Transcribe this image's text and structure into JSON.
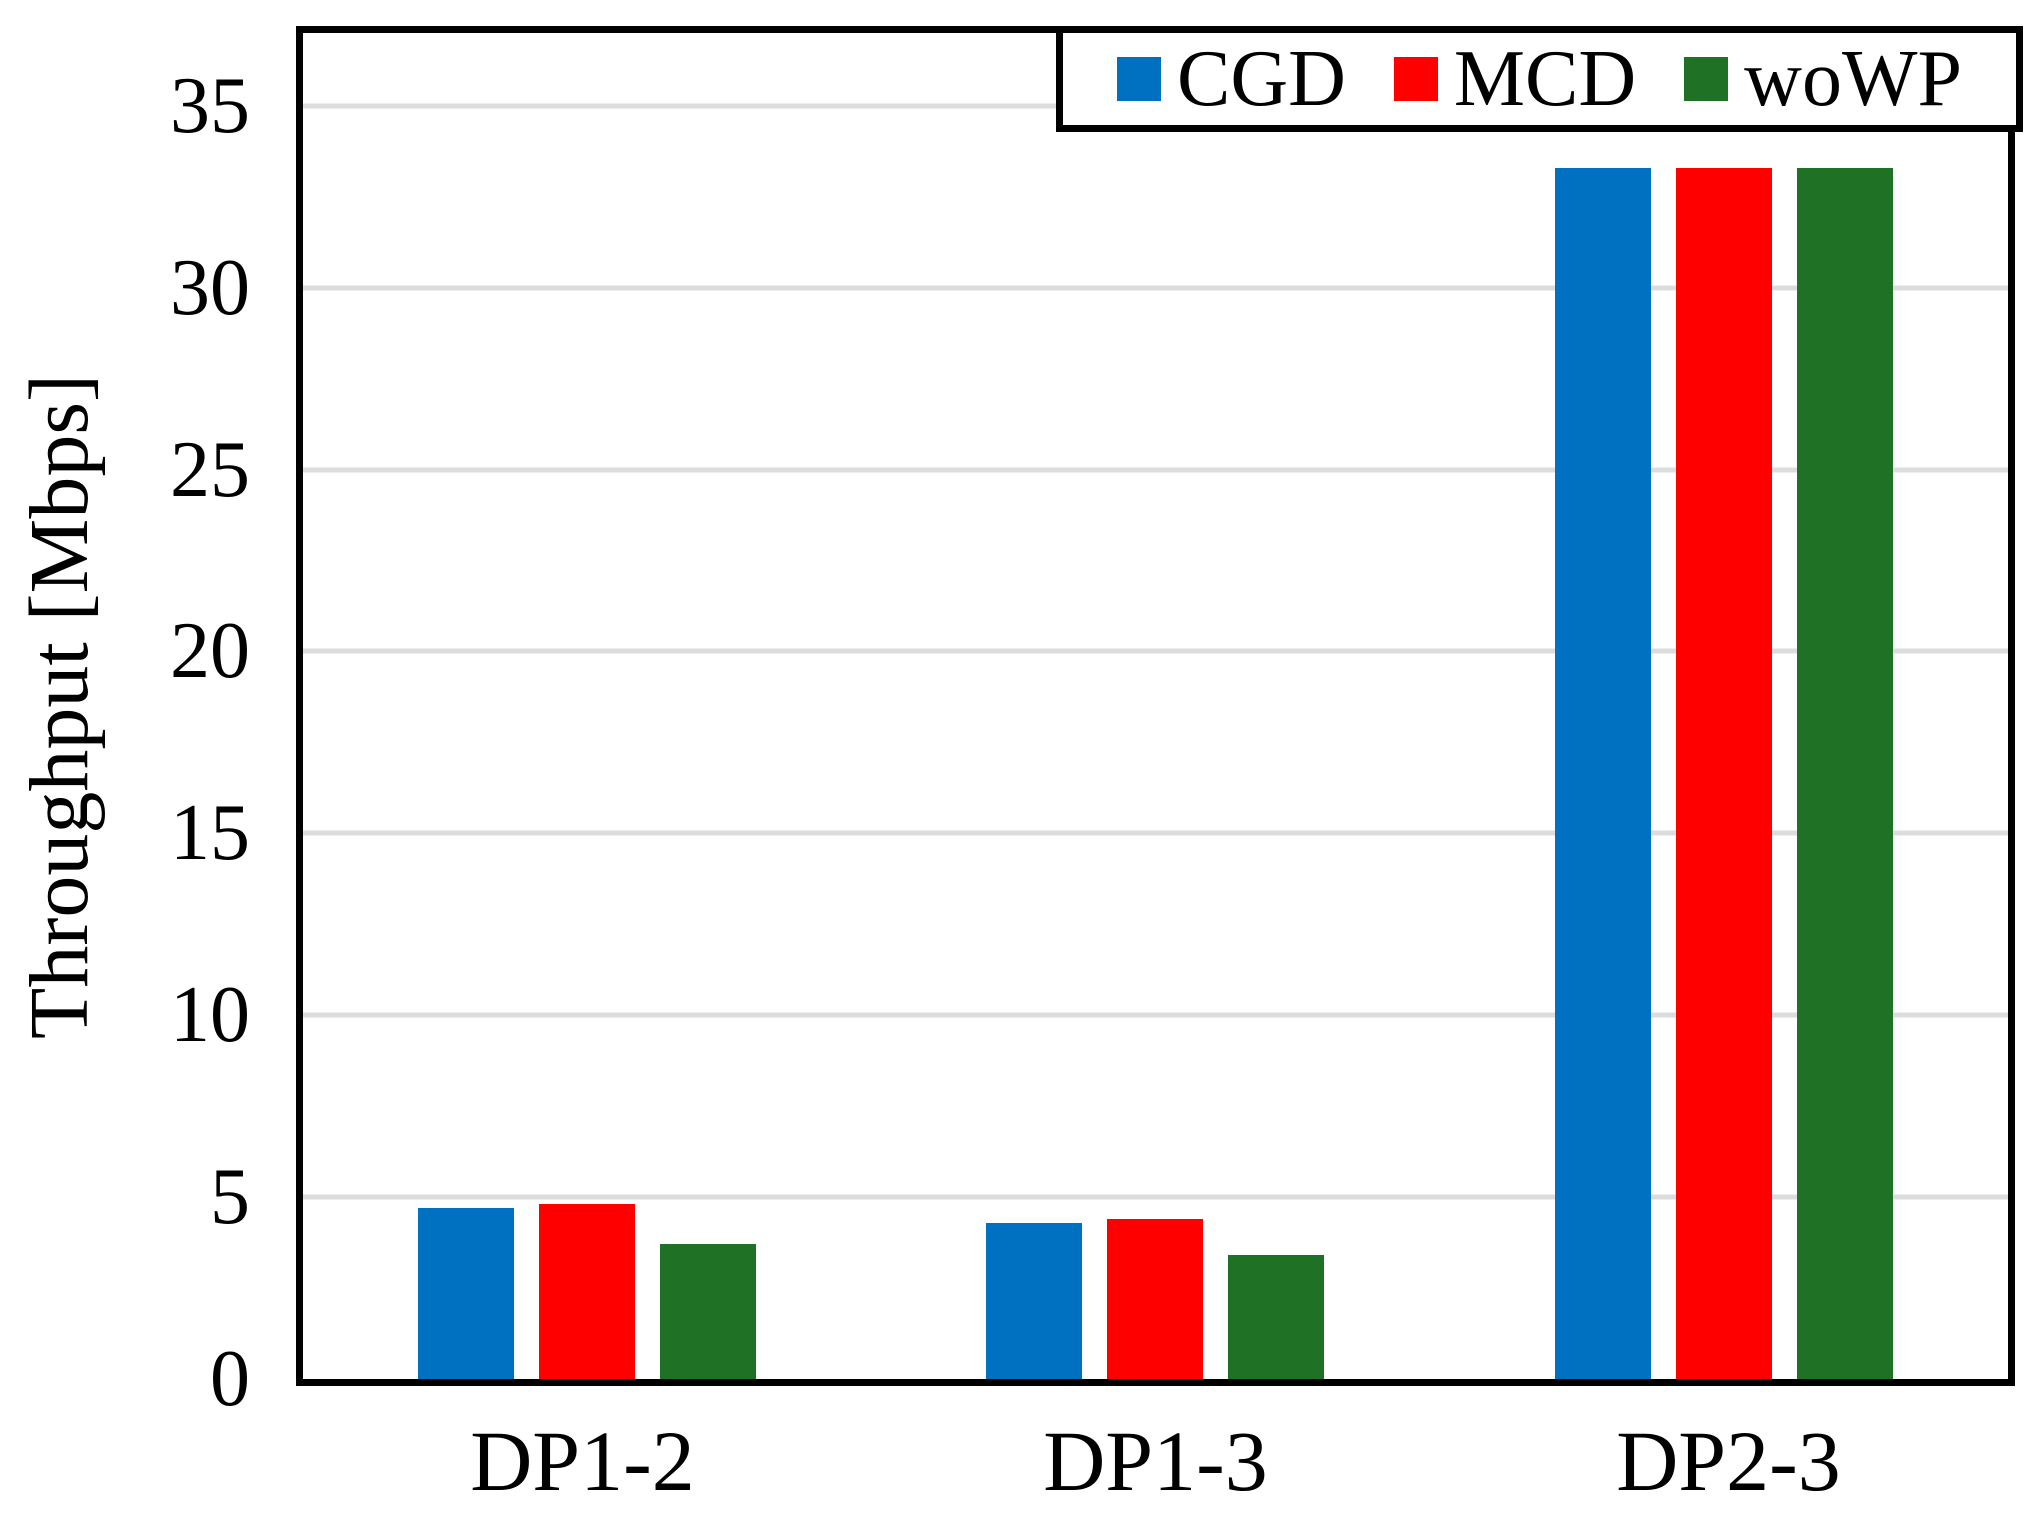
{
  "chart_data": {
    "type": "bar",
    "ylabel": "Throughput [Mbps]",
    "categories": [
      "DP1-2",
      "DP1-3",
      "DP2-3"
    ],
    "series": [
      {
        "name": "CGD",
        "color": "#0070C0",
        "values": [
          4.7,
          4.3,
          33.3
        ]
      },
      {
        "name": "MCD",
        "color": "#FF0000",
        "values": [
          4.8,
          4.4,
          33.3
        ]
      },
      {
        "name": "woWP",
        "color": "#1E7125",
        "values": [
          3.7,
          3.4,
          33.3
        ]
      }
    ],
    "ylim": [
      0,
      37
    ],
    "yticks": [
      0,
      5,
      10,
      15,
      20,
      25,
      30,
      35
    ],
    "grid": "horizontal",
    "gridline_color": "#DCDCDC",
    "axis_color": "#000000",
    "legend_position": "top-right"
  }
}
